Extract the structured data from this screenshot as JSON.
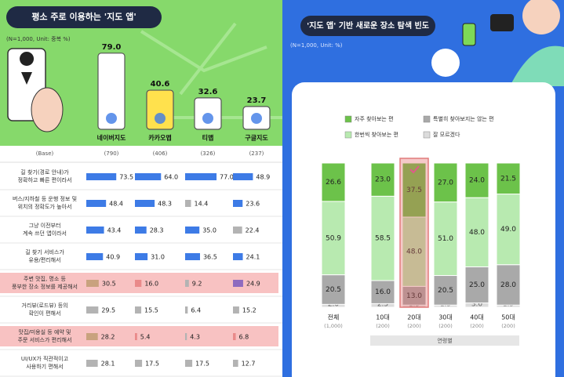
{
  "chart_data": [
    {
      "type": "phone_bar",
      "title": "평소 주로 이용하는 '지도 앱'",
      "subtitle": "(N=1,000, Unit: 중복 %)",
      "categories": [
        "네이버지도",
        "카카오맵",
        "티맵",
        "구글지도"
      ],
      "values": [
        79.0,
        40.6,
        32.6,
        23.7
      ],
      "value_labels": [
        "79.0",
        "40.6",
        "32.6",
        "23.7"
      ],
      "colors": [
        "#ffffff",
        "#ffe14d",
        "#ffffff",
        "#ffffff"
      ]
    },
    {
      "type": "stacked_bar",
      "title": "'지도 앱' 기반 새로운 장소 탐색 빈도",
      "subtitle": "(N=1,000, Unit: %)",
      "categories": [
        "전체",
        "10대",
        "20대",
        "30대",
        "40대",
        "50대"
      ],
      "bases": [
        "(1,000)",
        "(200)",
        "(200)",
        "(200)",
        "(200)",
        "(200)"
      ],
      "group_label": "연령별",
      "highlight_index": 2,
      "ylim": [
        0,
        100
      ],
      "series": [
        {
          "name": "잘 모르겠다",
          "color": "#dcdcdc",
          "values": [
            2.0,
            2.5,
            1.5,
            1.5,
            3.0,
            1.5
          ],
          "value_labels": [
            "2.0",
            "2.5",
            "1.5",
            "1.5",
            "3.0",
            "1.5"
          ]
        },
        {
          "name": "특별히 찾아보지는 않는 편",
          "color": "#a9a9a9",
          "values": [
            20.5,
            16.0,
            13.0,
            20.5,
            25.0,
            28.0
          ],
          "value_labels": [
            "20.5",
            "16.0",
            "13.0",
            "20.5",
            "25.0",
            "28.0"
          ]
        },
        {
          "name": "한번씩 찾아보는 편",
          "color": "#b8eab0",
          "values": [
            50.9,
            58.5,
            48.0,
            51.0,
            48.0,
            49.0
          ],
          "value_labels": [
            "50.9",
            "58.5",
            "48.0",
            "51.0",
            "48.0",
            "49.0"
          ]
        },
        {
          "name": "자주 찾아보는 편",
          "color": "#6cc24a",
          "values": [
            26.6,
            23.0,
            37.5,
            27.0,
            24.0,
            21.5
          ],
          "value_labels": [
            "26.6",
            "23.0",
            "37.5",
            "27.0",
            "24.0",
            "21.5"
          ]
        }
      ]
    }
  ],
  "table": {
    "base_label": "(Base)",
    "bases": [
      "(790)",
      "(406)",
      "(326)",
      "(237)"
    ],
    "highlight_rows": [
      4,
      6
    ],
    "rows": [
      {
        "label": [
          "길 찾기(경로 안내)가",
          "정확하고 빠른 편이라서"
        ],
        "values": [
          73.5,
          64.0,
          77.0,
          48.9
        ],
        "value_labels": [
          "73.5",
          "64.0",
          "77.0",
          "48.9"
        ],
        "colors": [
          "#3d7be6",
          "#3d7be6",
          "#3d7be6",
          "#3d7be6"
        ]
      },
      {
        "label": [
          "버스/지하철 등 운행 정보 및",
          "위치의 정확도가 높아서"
        ],
        "values": [
          48.4,
          48.3,
          14.4,
          23.6
        ],
        "value_labels": [
          "48.4",
          "48.3",
          "14.4",
          "23.6"
        ],
        "colors": [
          "#3d7be6",
          "#3d7be6",
          "#b3b3b3",
          "#3d7be6"
        ]
      },
      {
        "label": [
          "그냥 이전부터",
          "계속 쓰던 앱이라서"
        ],
        "values": [
          43.4,
          28.3,
          35.0,
          22.4
        ],
        "value_labels": [
          "43.4",
          "28.3",
          "35.0",
          "22.4"
        ],
        "colors": [
          "#3d7be6",
          "#3d7be6",
          "#3d7be6",
          "#b3b3b3"
        ]
      },
      {
        "label": [
          "길 찾기 서비스가",
          "유용/편리해서"
        ],
        "values": [
          40.9,
          31.0,
          36.5,
          24.1
        ],
        "value_labels": [
          "40.9",
          "31.0",
          "36.5",
          "24.1"
        ],
        "colors": [
          "#3d7be6",
          "#3d7be6",
          "#3d7be6",
          "#3d7be6"
        ]
      },
      {
        "label": [
          "주변 맛집, 명소 등",
          "풍부한 장소 정보를 제공해서"
        ],
        "values": [
          30.5,
          16.0,
          9.2,
          24.9
        ],
        "value_labels": [
          "30.5",
          "16.0",
          "9.2",
          "24.9"
        ],
        "colors": [
          "#c9a27e",
          "#e98a8a",
          "#b3b3b3",
          "#8e6bbf"
        ]
      },
      {
        "label": [
          "거리뷰(로드뷰) 등의",
          "확인이 편해서"
        ],
        "values": [
          29.5,
          15.5,
          6.4,
          15.2
        ],
        "value_labels": [
          "29.5",
          "15.5",
          "6.4",
          "15.2"
        ],
        "colors": [
          "#b3b3b3",
          "#b3b3b3",
          "#b3b3b3",
          "#b3b3b3"
        ]
      },
      {
        "label": [
          "맛집/미용실 등 예약 및",
          "주문 서비스가 편리해서"
        ],
        "values": [
          28.2,
          5.4,
          4.3,
          6.8
        ],
        "value_labels": [
          "28.2",
          "5.4",
          "4.3",
          "6.8"
        ],
        "colors": [
          "#c9a27e",
          "#e98a8a",
          "#b3b3b3",
          "#e98a8a"
        ]
      },
      {
        "label": [
          "UI/UX가 직관적이고",
          "사용하기 편해서"
        ],
        "values": [
          28.1,
          17.5,
          17.5,
          12.7
        ],
        "value_labels": [
          "28.1",
          "17.5",
          "17.5",
          "12.7"
        ],
        "colors": [
          "#b3b3b3",
          "#b3b3b3",
          "#b3b3b3",
          "#b3b3b3"
        ]
      }
    ]
  }
}
